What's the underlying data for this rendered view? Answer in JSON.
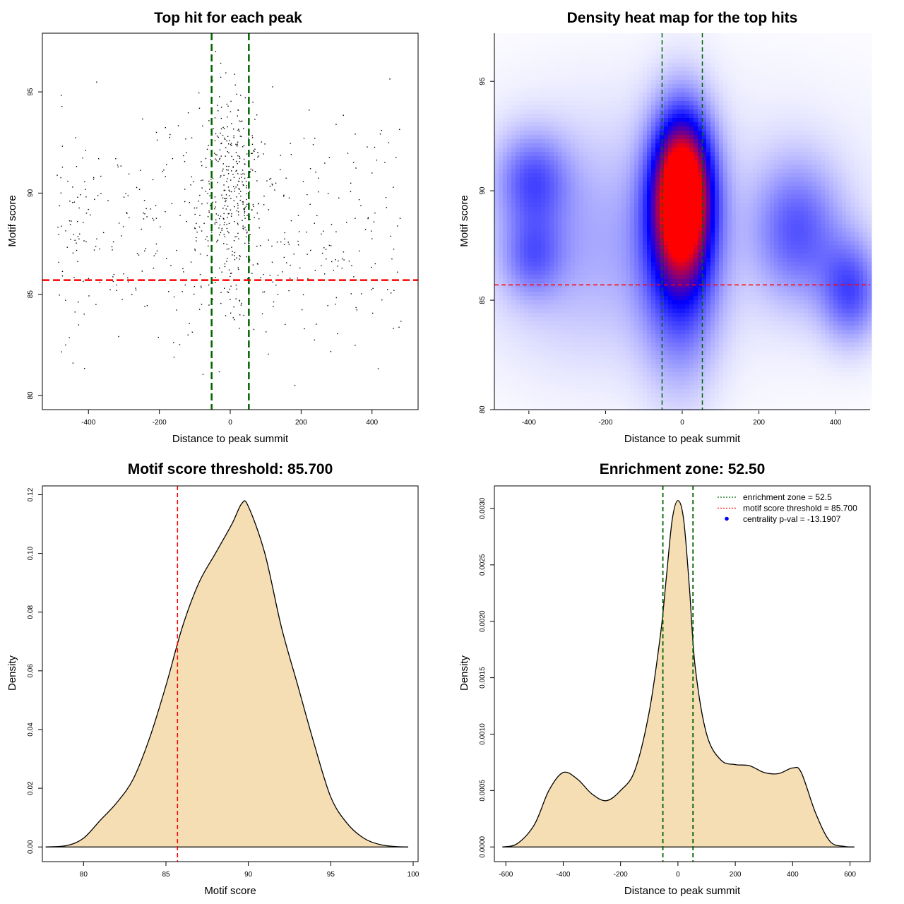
{
  "chart_data": [
    {
      "id": "scatter",
      "type": "scatter",
      "title": "Top hit for each peak",
      "xlabel": "Distance to peak summit",
      "ylabel": "Motif score",
      "xlim": [
        -530,
        530
      ],
      "ylim": [
        79.3,
        97.9
      ],
      "xticks": [
        -400,
        -200,
        0,
        200,
        400
      ],
      "yticks": [
        80,
        85,
        90,
        95
      ],
      "xtick_labels": [
        "-400",
        "-200",
        "0",
        "200",
        "400"
      ],
      "ytick_labels": [
        "80",
        "85",
        "90",
        "95"
      ],
      "vlines": [
        -52.5,
        52.5
      ],
      "hline": 85.7,
      "n_points": 800,
      "center_sd": 45,
      "colors": {
        "vline": "#006400",
        "hline": "#ff0000",
        "points": "#000000"
      }
    },
    {
      "id": "heatmap",
      "type": "heatmap",
      "title": "Density heat map for the top hits",
      "xlabel": "Distance to peak summit",
      "ylabel": "Motif score",
      "xlim": [
        -490,
        490
      ],
      "ylim": [
        80,
        97.2
      ],
      "xticks": [
        -400,
        -200,
        0,
        200,
        400
      ],
      "yticks": [
        80,
        85,
        90,
        95
      ],
      "xtick_labels": [
        "-400",
        "-200",
        "0",
        "200",
        "400"
      ],
      "ytick_labels": [
        "80",
        "85",
        "90",
        "95"
      ],
      "vlines": [
        -52.5,
        52.5
      ],
      "hline": 85.7,
      "density_peak": {
        "x": 0,
        "y": 90
      },
      "colors": {
        "vline": "#006400",
        "hline": "#ff0000",
        "low": "#ffffff",
        "mid": "#0000ff",
        "high": "#ff0000"
      }
    },
    {
      "id": "score_density",
      "type": "area",
      "title": "Motif score threshold: 85.700",
      "xlabel": "Motif score",
      "ylabel": "Density",
      "xlim": [
        77.5,
        100.3
      ],
      "ylim": [
        -0.005,
        0.123
      ],
      "xticks": [
        80,
        85,
        90,
        95,
        100
      ],
      "yticks": [
        0,
        0.02,
        0.04,
        0.06,
        0.08,
        0.1,
        0.12
      ],
      "xtick_labels": [
        "80",
        "85",
        "90",
        "95",
        "100"
      ],
      "ytick_labels": [
        "0.00",
        "0.02",
        "0.04",
        "0.06",
        "0.08",
        "0.10",
        "0.12"
      ],
      "x": [
        77.7,
        79,
        80,
        81,
        82,
        83,
        84,
        85,
        86,
        87,
        88,
        89,
        89.6,
        90,
        91,
        92,
        93,
        94,
        95,
        96,
        97,
        98,
        99,
        99.7
      ],
      "y": [
        0,
        0.0005,
        0.003,
        0.009,
        0.015,
        0.023,
        0.037,
        0.055,
        0.075,
        0.09,
        0.1,
        0.11,
        0.117,
        0.116,
        0.1,
        0.075,
        0.055,
        0.035,
        0.017,
        0.008,
        0.003,
        0.0008,
        0.0001,
        0
      ],
      "vline": 85.7,
      "colors": {
        "fill": "#f5deb3",
        "line": "#000000",
        "vline": "#ff0000"
      }
    },
    {
      "id": "distance_density",
      "type": "area",
      "title": "Enrichment zone: 52.50",
      "xlabel": "Distance to peak summit",
      "ylabel": "Density",
      "xlim": [
        -640,
        670
      ],
      "ylim": [
        -0.00013,
        0.0032
      ],
      "xticks": [
        -600,
        -400,
        -200,
        0,
        200,
        400,
        600
      ],
      "yticks": [
        0,
        0.0005,
        0.001,
        0.0015,
        0.002,
        0.0025,
        0.003
      ],
      "xtick_labels": [
        "-600",
        "-400",
        "-200",
        "0",
        "200",
        "400",
        "600"
      ],
      "ytick_labels": [
        "0.0000",
        "0.0005",
        "0.0010",
        "0.0015",
        "0.0020",
        "0.0025",
        "0.0030"
      ],
      "x": [
        -612,
        -560,
        -500,
        -450,
        -400,
        -350,
        -300,
        -250,
        -200,
        -150,
        -100,
        -60,
        -40,
        -20,
        0,
        20,
        40,
        60,
        100,
        150,
        200,
        250,
        300,
        350,
        400,
        430,
        480,
        530,
        580,
        615
      ],
      "y": [
        0,
        3e-05,
        0.0002,
        0.0005,
        0.00066,
        0.0006,
        0.00047,
        0.00041,
        0.0005,
        0.00068,
        0.0012,
        0.0019,
        0.0024,
        0.0029,
        0.00307,
        0.0029,
        0.0023,
        0.0016,
        0.001,
        0.00077,
        0.00073,
        0.00072,
        0.00066,
        0.00065,
        0.0007,
        0.00066,
        0.0003,
        5e-05,
        5e-06,
        0
      ],
      "vlines": [
        -52.5,
        52.5
      ],
      "legend_position": "top-right",
      "legend": [
        {
          "label": "enrichment zone = 52.5",
          "style": "dotted-line",
          "color": "#006400"
        },
        {
          "label": "motif score threshold = 85.700",
          "style": "dotted-line",
          "color": "#ff0000"
        },
        {
          "label": "centrality p-val = -13.1907",
          "style": "point",
          "color": "#0000ff"
        }
      ],
      "colors": {
        "fill": "#f5deb3",
        "line": "#000000",
        "vline": "#006400"
      }
    }
  ]
}
